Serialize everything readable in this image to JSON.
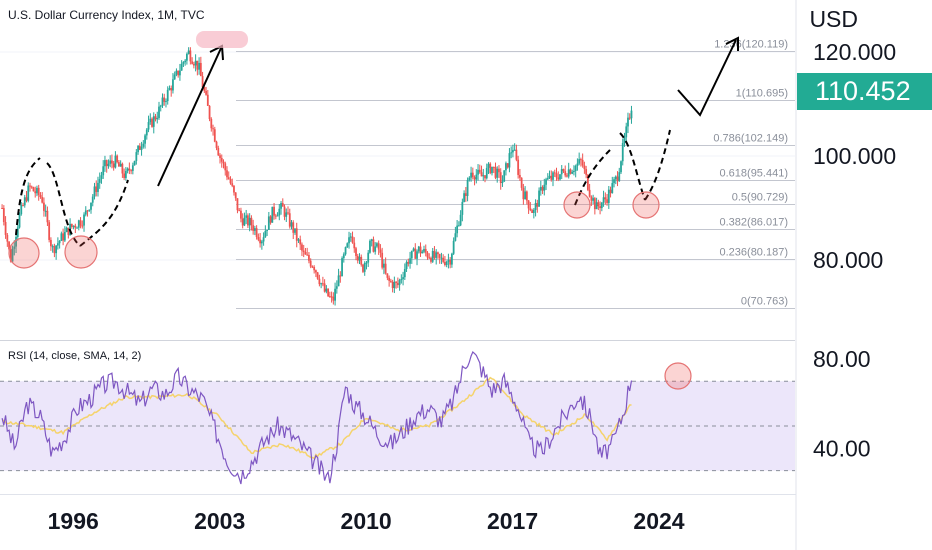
{
  "header": {
    "title": "U.S. Dollar Currency Index, 1M, TVC",
    "currency": "USD",
    "last_price": "110.452",
    "rsi_title": "RSI (14, close, SMA, 14, 2)"
  },
  "colors": {
    "up": "#26a69a",
    "down": "#ef5350",
    "rsi_line": "#7e57c2",
    "rsi_ma": "#f5d36b",
    "rsi_band": "#ece6fa",
    "price_tag": "#22ab94",
    "highlight": "#f7b7c3"
  },
  "chart_data": [
    {
      "type": "line",
      "title": "U.S. Dollar Currency Index, 1M, TVC",
      "x_ticks": [
        "1996",
        "2003",
        "2010",
        "2017",
        "2024"
      ],
      "y_ticks": [
        "80.000",
        "100.000",
        "120.000"
      ],
      "ylim": [
        65,
        130
      ],
      "xlim": [
        1992.5,
        2030.5
      ],
      "series": [
        {
          "x": [
            1992.6,
            1993.0,
            1993.4,
            1993.9,
            1994.5,
            1995.0,
            1995.4,
            1995.8,
            1996.5,
            1997.0,
            1997.5,
            1998.0,
            1998.5,
            1999.0,
            1999.5,
            2000.0,
            2000.5,
            2001.0,
            2001.5,
            2002.0,
            2002.5,
            2003.0,
            2003.5,
            2004.0,
            2004.5,
            2005.0,
            2005.5,
            2006.0,
            2006.5,
            2007.0,
            2007.5,
            2008.0,
            2008.4,
            2008.9,
            2009.3,
            2009.8,
            2010.2,
            2010.6,
            2011.0,
            2011.5,
            2012.0,
            2012.5,
            2013.0,
            2013.5,
            2014.0,
            2014.5,
            2015.0,
            2015.5,
            2016.0,
            2016.5,
            2017.0,
            2017.5,
            2018.0,
            2018.5,
            2019.0,
            2019.5,
            2020.0,
            2020.3,
            2020.7,
            2021.0,
            2021.5,
            2022.0,
            2022.4,
            2022.7
          ],
          "values": [
            90,
            80,
            88,
            94,
            92,
            82,
            84,
            86,
            88,
            93,
            98,
            99,
            96,
            100,
            105,
            108,
            112,
            116,
            120,
            117,
            108,
            100,
            95,
            88,
            87,
            84,
            89,
            90,
            86,
            81,
            79,
            74,
            72,
            80,
            85,
            78,
            83,
            82,
            76,
            75,
            80,
            82,
            81,
            80,
            80,
            89,
            97,
            96,
            98,
            95,
            102,
            93,
            89,
            95,
            96,
            97,
            98,
            99,
            93,
            90,
            92,
            96,
            104,
            110
          ]
        }
      ],
      "fib_levels": [
        {
          "label": "0(70.763)",
          "value": 70.763
        },
        {
          "label": "0.236(80.187)",
          "value": 80.187
        },
        {
          "label": "0.382(86.017)",
          "value": 86.017
        },
        {
          "label": "0.5(90.729)",
          "value": 90.729
        },
        {
          "label": "0.618(95.441)",
          "value": 95.441
        },
        {
          "label": "0.786(102.149)",
          "value": 102.149
        },
        {
          "label": "1(110.695)",
          "value": 110.695
        },
        {
          "label": "1.236(120.119)",
          "value": 120.119
        }
      ]
    },
    {
      "type": "line",
      "title": "RSI (14, close, SMA, 14, 2)",
      "y_ticks": [
        "80.00",
        "40.00"
      ],
      "ylim": [
        20,
        88
      ],
      "band": [
        30,
        70
      ],
      "midline": 50,
      "series": [
        {
          "x": [
            1992.6,
            1993.2,
            1993.8,
            1994.4,
            1995.0,
            1995.6,
            1996.2,
            1996.8,
            1997.4,
            1998.0,
            1998.6,
            1999.2,
            1999.8,
            2000.4,
            2001.0,
            2001.6,
            2002.2,
            2002.8,
            2003.4,
            2004.0,
            2004.6,
            2005.2,
            2005.8,
            2006.4,
            2007.0,
            2007.6,
            2008.2,
            2008.6,
            2009.0,
            2009.4,
            2010.0,
            2010.6,
            2011.2,
            2011.8,
            2012.4,
            2013.0,
            2013.6,
            2014.2,
            2014.6,
            2015.0,
            2015.5,
            2016.0,
            2016.6,
            2017.2,
            2017.8,
            2018.4,
            2019.0,
            2019.6,
            2020.2,
            2020.8,
            2021.2,
            2021.8,
            2022.3,
            2022.7
          ],
          "values": [
            55,
            40,
            60,
            55,
            38,
            45,
            58,
            62,
            68,
            70,
            65,
            60,
            67,
            64,
            72,
            66,
            62,
            48,
            34,
            28,
            35,
            44,
            50,
            46,
            40,
            33,
            26,
            42,
            68,
            60,
            54,
            46,
            42,
            48,
            55,
            58,
            52,
            62,
            74,
            84,
            76,
            66,
            70,
            60,
            42,
            38,
            48,
            56,
            64,
            52,
            36,
            42,
            56,
            73
          ]
        },
        {
          "x": [
            1992.6,
            1994.0,
            1995.5,
            1997.0,
            1998.5,
            2000.0,
            2001.5,
            2003.0,
            2004.5,
            2006.0,
            2007.5,
            2008.8,
            2010.0,
            2011.5,
            2013.0,
            2014.5,
            2016.0,
            2017.5,
            2019.0,
            2020.5,
            2021.5,
            2022.7
          ],
          "values": [
            52,
            50,
            47,
            56,
            63,
            63,
            64,
            54,
            38,
            42,
            36,
            42,
            54,
            48,
            50,
            60,
            72,
            55,
            46,
            55,
            44,
            60
          ]
        }
      ]
    }
  ]
}
